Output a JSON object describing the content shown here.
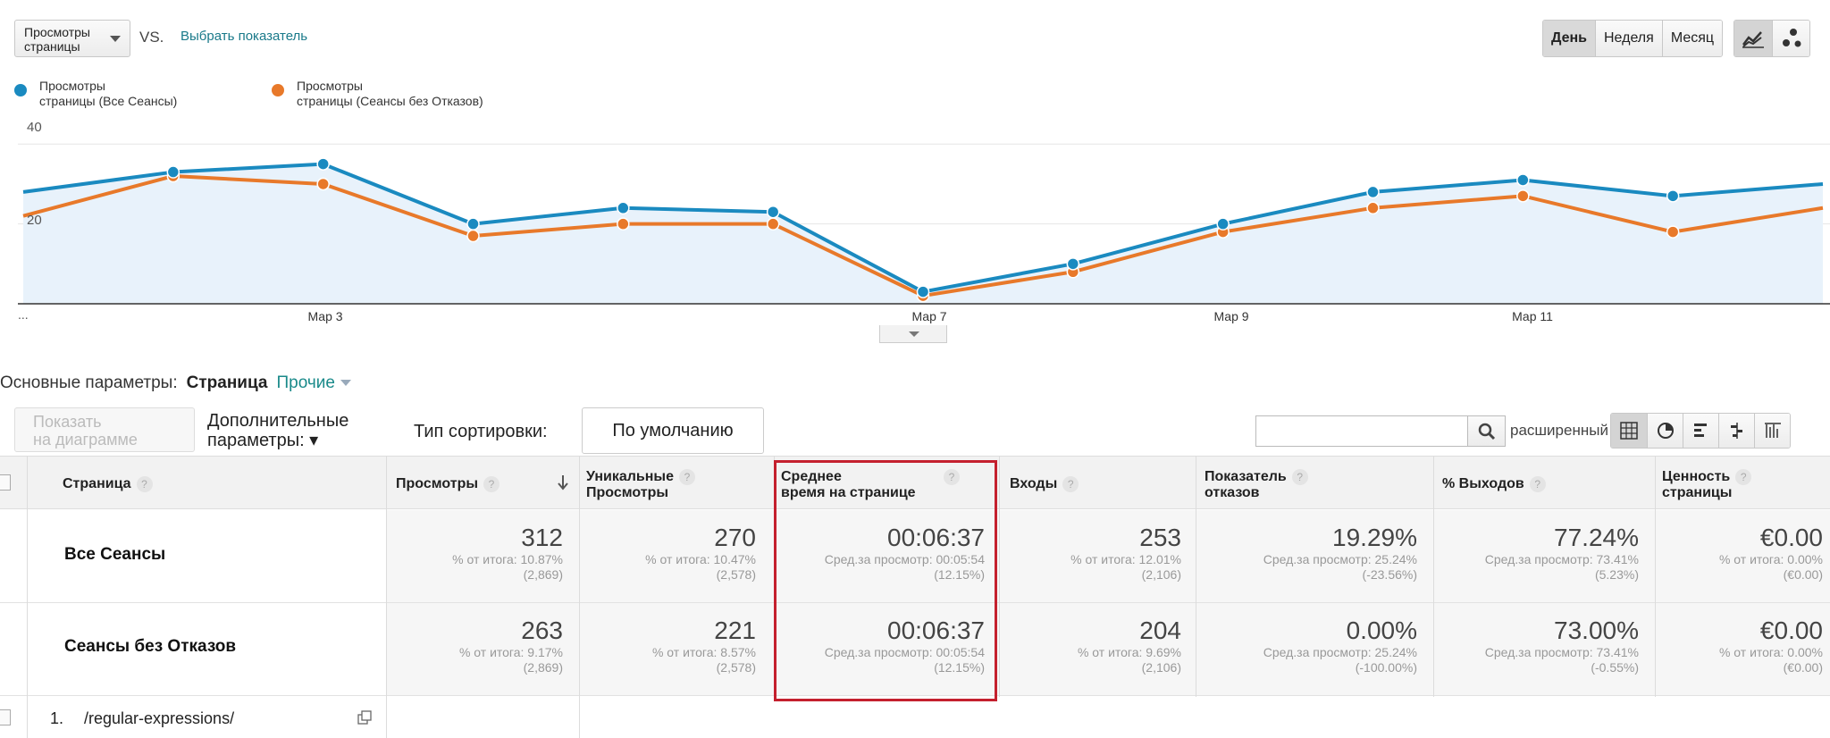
{
  "controls": {
    "metric_select": "Просмотры страницы",
    "vs": "VS.",
    "pick_metric": "Выбрать показатель",
    "periods": [
      "День",
      "Неделя",
      "Месяц"
    ],
    "active_period": "День",
    "view_icons": [
      "line-chart-icon",
      "motion-chart-icon"
    ]
  },
  "legend": [
    {
      "label_l1": "Просмотры",
      "label_l2": "страницы (Все Сеансы)",
      "color": "#1a8ac0"
    },
    {
      "label_l1": "Просмотры",
      "label_l2": "страницы (Сеансы без Отказов)",
      "color": "#e8792a"
    }
  ],
  "chart_data": {
    "type": "line",
    "y_ticks": [
      "40",
      "20"
    ],
    "x_tick_labels": [
      "...",
      "Мар 3",
      "Мар 7",
      "Мар 9",
      "Мар 11"
    ],
    "ylim": [
      0,
      47
    ],
    "series": [
      {
        "name": "Просмотры страницы (Все Сеансы)",
        "color": "#1a8ac0",
        "values": [
          28,
          33,
          35,
          20,
          24,
          23,
          3,
          10,
          20,
          28,
          31,
          27,
          30
        ]
      },
      {
        "name": "Просмотры страницы (Сеансы без Отказов)",
        "color": "#e8792a",
        "values": [
          22,
          32,
          30,
          17,
          20,
          20,
          2,
          8,
          18,
          24,
          27,
          18,
          24
        ]
      }
    ]
  },
  "dimensions": {
    "label": "Основные параметры:",
    "active": "Страница",
    "other": "Прочие"
  },
  "toolbar": {
    "plot_l1": "Показать",
    "plot_l2": "на диаграмме",
    "secondary_l1": "Дополнительные",
    "secondary_l2": "параметры: ▾",
    "sort_label": "Тип сортировки:",
    "sort_value": "По умолчанию",
    "search_placeholder": "",
    "advanced": "расширенный"
  },
  "table": {
    "headers": [
      {
        "l1": "Страница",
        "l2": ""
      },
      {
        "l1": "Просмотры",
        "l2": ""
      },
      {
        "l1": "Уникальные",
        "l2": "Просмотры"
      },
      {
        "l1": "Среднее",
        "l2": "время на странице"
      },
      {
        "l1": "Входы",
        "l2": ""
      },
      {
        "l1": "Показатель",
        "l2": "отказов"
      },
      {
        "l1": "% Выходов",
        "l2": ""
      },
      {
        "l1": "Ценность",
        "l2": "страницы"
      }
    ],
    "rows": [
      {
        "label": "Все Сеансы",
        "cells": [
          {
            "big": "312",
            "s1": "% от итога: 10.87%",
            "s2": "(2,869)"
          },
          {
            "big": "270",
            "s1": "% от итога: 10.47%",
            "s2": "(2,578)"
          },
          {
            "big": "00:06:37",
            "s1": "Сред.за просмотр: 00:05:54",
            "s2": "(12.15%)"
          },
          {
            "big": "253",
            "s1": "% от итога: 12.01%",
            "s2": "(2,106)"
          },
          {
            "big": "19.29%",
            "s1": "Сред.за просмотр: 25.24%",
            "s2": "(-23.56%)"
          },
          {
            "big": "77.24%",
            "s1": "Сред.за просмотр: 73.41%",
            "s2": "(5.23%)"
          },
          {
            "big": "€0.00",
            "s1": "% от итога: 0.00%",
            "s2": "(€0.00)"
          }
        ]
      },
      {
        "label": "Сеансы без Отказов",
        "cells": [
          {
            "big": "263",
            "s1": "% от итога: 9.17%",
            "s2": "(2,869)"
          },
          {
            "big": "221",
            "s1": "% от итога: 8.57%",
            "s2": "(2,578)"
          },
          {
            "big": "00:06:37",
            "s1": "Сред.за просмотр: 00:05:54",
            "s2": "(12.15%)"
          },
          {
            "big": "204",
            "s1": "% от итога: 9.69%",
            "s2": "(2,106)"
          },
          {
            "big": "0.00%",
            "s1": "Сред.за просмотр: 25.24%",
            "s2": "(-100.00%)"
          },
          {
            "big": "73.00%",
            "s1": "Сред.за просмотр: 73.41%",
            "s2": "(-0.55%)"
          },
          {
            "big": "€0.00",
            "s1": "% от итога: 0.00%",
            "s2": "(€0.00)"
          }
        ]
      }
    ],
    "first_item": {
      "index": "1.",
      "page": "/regular-expressions/"
    }
  }
}
